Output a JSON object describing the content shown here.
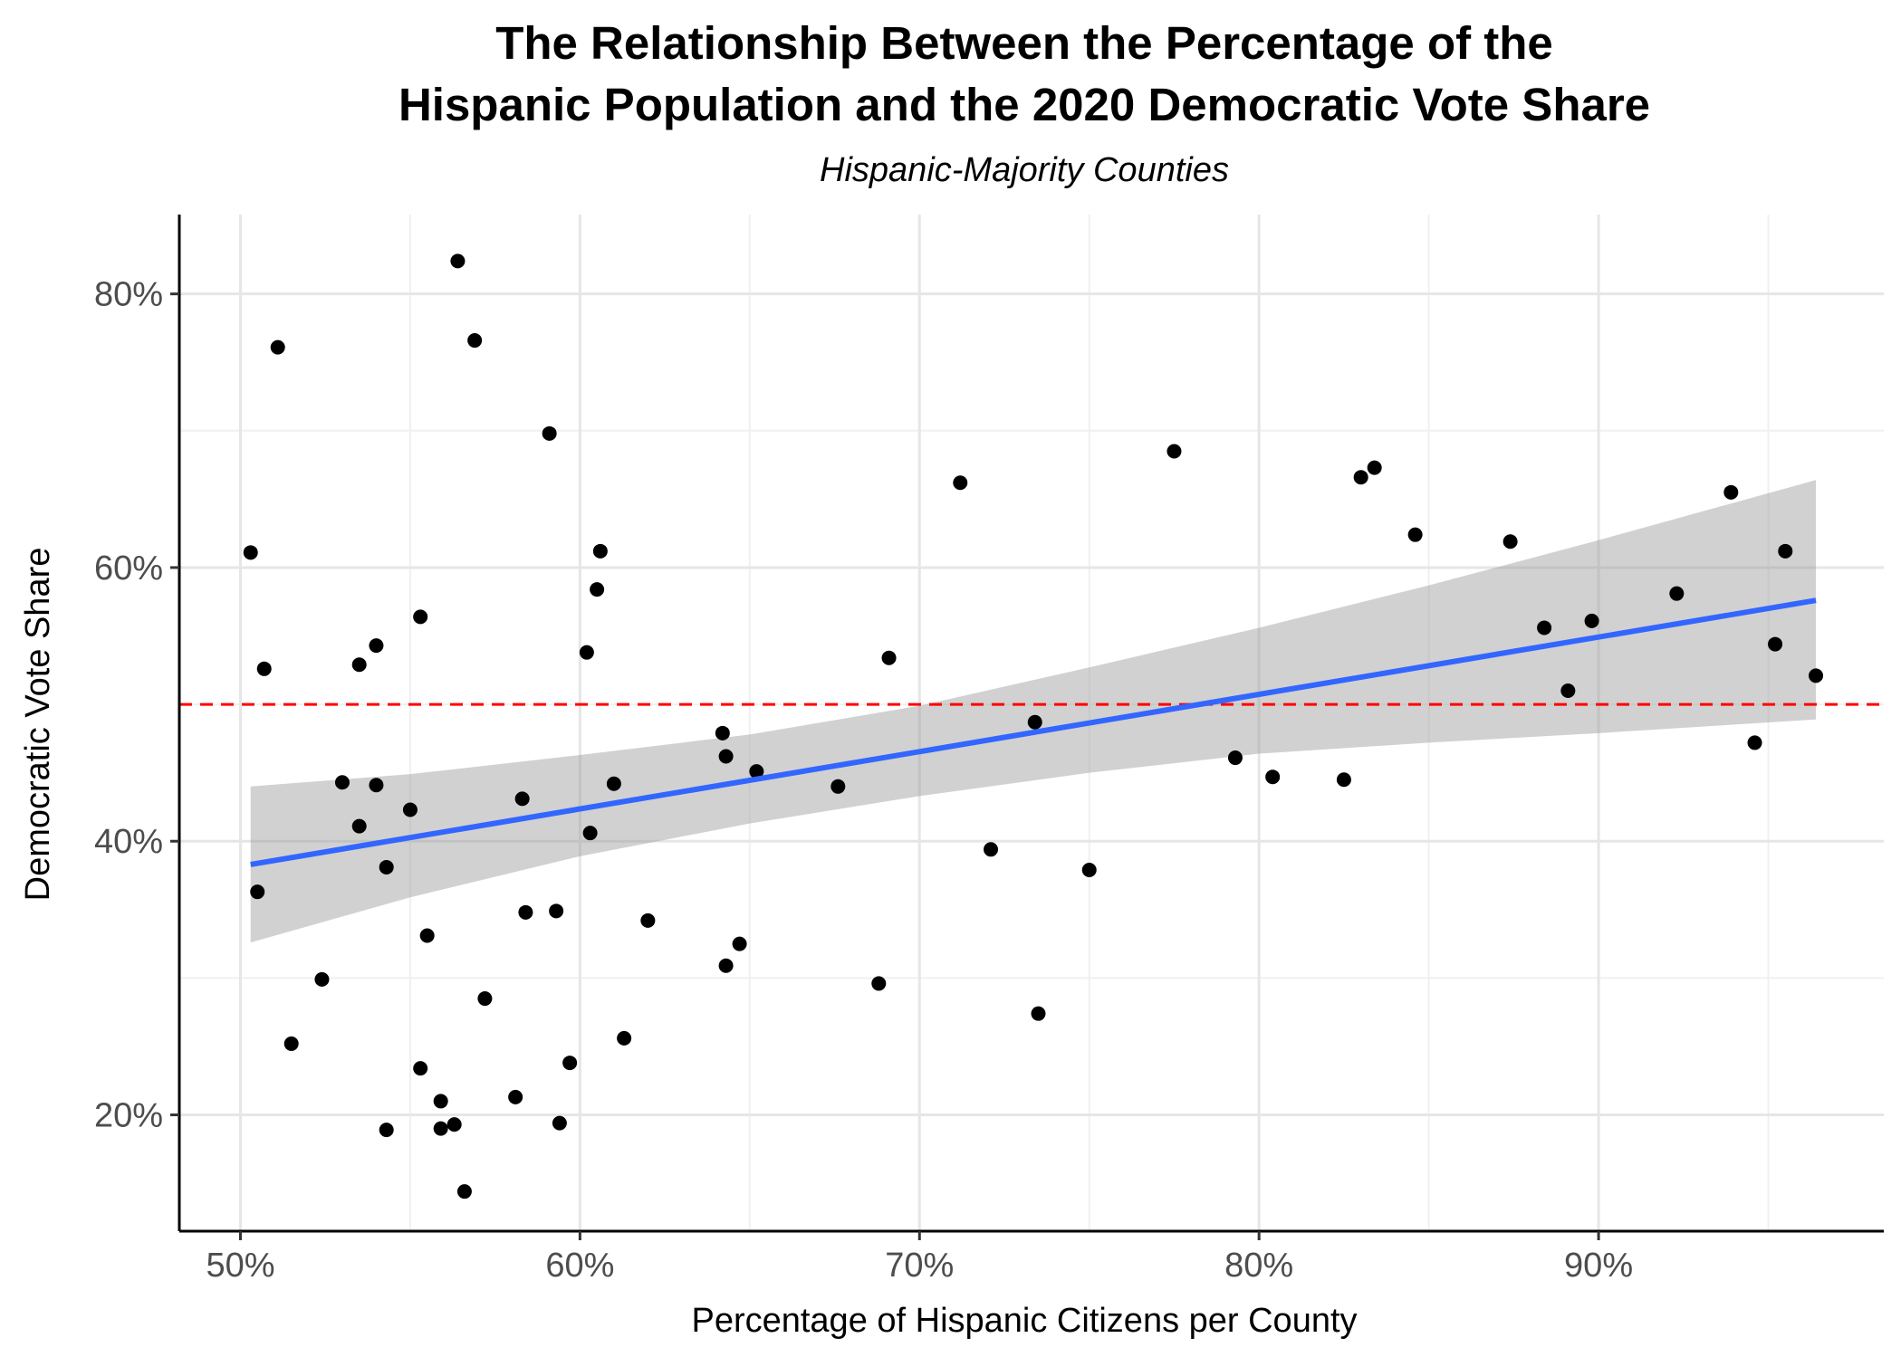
{
  "chart_data": {
    "type": "scatter",
    "title_lines": [
      "The Relationship Between the Percentage of the",
      "Hispanic Population and the 2020 Democratic Vote Share"
    ],
    "subtitle": "Hispanic-Majority Counties",
    "xlabel": "Percentage of Hispanic Citizens per County",
    "ylabel": "Democratic Vote Share",
    "xlim": [
      48.2,
      98.4
    ],
    "ylim": [
      11.5,
      85.8
    ],
    "x_ticks": [
      50,
      60,
      70,
      80,
      90
    ],
    "x_tick_labels": [
      "50%",
      "60%",
      "70%",
      "80%",
      "90%"
    ],
    "y_ticks": [
      20,
      40,
      60,
      80
    ],
    "y_tick_labels": [
      "20%",
      "40%",
      "60%",
      "80%"
    ],
    "grid": true,
    "reference_line": {
      "y": 50,
      "color": "#ff0000",
      "style": "dashed"
    },
    "trend_line": {
      "x": [
        50.3,
        96.4
      ],
      "y": [
        38.3,
        57.6
      ],
      "color": "#3366ff",
      "ci_lower": [
        [
          50.3,
          32.6
        ],
        [
          55,
          35.9
        ],
        [
          60,
          38.9
        ],
        [
          65,
          41.3
        ],
        [
          70,
          43.3
        ],
        [
          75,
          45.0
        ],
        [
          80,
          46.4
        ],
        [
          85,
          47.2
        ],
        [
          90,
          47.9
        ],
        [
          96.4,
          48.9
        ]
      ],
      "ci_upper": [
        [
          50.3,
          44.0
        ],
        [
          55,
          44.9
        ],
        [
          60,
          46.3
        ],
        [
          65,
          47.8
        ],
        [
          70,
          49.9
        ],
        [
          75,
          52.7
        ],
        [
          80,
          55.6
        ],
        [
          85,
          58.7
        ],
        [
          90,
          62.0
        ],
        [
          96.4,
          66.4
        ]
      ],
      "ci_color": "#999999"
    },
    "points": [
      [
        50.3,
        61.1
      ],
      [
        50.5,
        36.3
      ],
      [
        50.7,
        52.6
      ],
      [
        51.1,
        76.1
      ],
      [
        51.5,
        25.2
      ],
      [
        52.4,
        29.9
      ],
      [
        53.0,
        44.3
      ],
      [
        53.5,
        41.1
      ],
      [
        53.5,
        52.9
      ],
      [
        54.0,
        54.3
      ],
      [
        54.0,
        44.1
      ],
      [
        54.3,
        38.1
      ],
      [
        54.3,
        18.9
      ],
      [
        55.0,
        42.3
      ],
      [
        55.3,
        56.4
      ],
      [
        55.3,
        23.4
      ],
      [
        55.5,
        33.1
      ],
      [
        55.9,
        21.0
      ],
      [
        55.9,
        19.0
      ],
      [
        56.3,
        19.3
      ],
      [
        56.4,
        82.4
      ],
      [
        56.6,
        14.4
      ],
      [
        56.9,
        76.6
      ],
      [
        57.2,
        28.5
      ],
      [
        58.1,
        21.3
      ],
      [
        58.3,
        43.1
      ],
      [
        58.4,
        34.8
      ],
      [
        59.1,
        69.8
      ],
      [
        59.3,
        34.9
      ],
      [
        59.4,
        19.4
      ],
      [
        59.7,
        23.8
      ],
      [
        60.2,
        53.8
      ],
      [
        60.3,
        40.6
      ],
      [
        60.5,
        58.4
      ],
      [
        60.6,
        61.2
      ],
      [
        61.0,
        44.2
      ],
      [
        61.3,
        25.6
      ],
      [
        62.0,
        34.2
      ],
      [
        64.2,
        47.9
      ],
      [
        64.3,
        46.2
      ],
      [
        64.3,
        30.9
      ],
      [
        64.7,
        32.5
      ],
      [
        65.2,
        45.1
      ],
      [
        67.6,
        44.0
      ],
      [
        68.8,
        29.6
      ],
      [
        69.1,
        53.4
      ],
      [
        71.2,
        66.2
      ],
      [
        72.1,
        39.4
      ],
      [
        73.4,
        48.7
      ],
      [
        73.5,
        27.4
      ],
      [
        75.0,
        37.9
      ],
      [
        77.5,
        68.5
      ],
      [
        79.3,
        46.1
      ],
      [
        80.4,
        44.7
      ],
      [
        82.5,
        44.5
      ],
      [
        83.0,
        66.6
      ],
      [
        83.4,
        67.3
      ],
      [
        84.6,
        62.4
      ],
      [
        87.4,
        61.9
      ],
      [
        88.4,
        55.6
      ],
      [
        89.1,
        51.0
      ],
      [
        89.8,
        56.1
      ],
      [
        92.3,
        58.1
      ],
      [
        93.9,
        65.5
      ],
      [
        94.6,
        47.2
      ],
      [
        95.2,
        54.4
      ],
      [
        95.5,
        61.2
      ],
      [
        96.4,
        52.1
      ]
    ]
  }
}
